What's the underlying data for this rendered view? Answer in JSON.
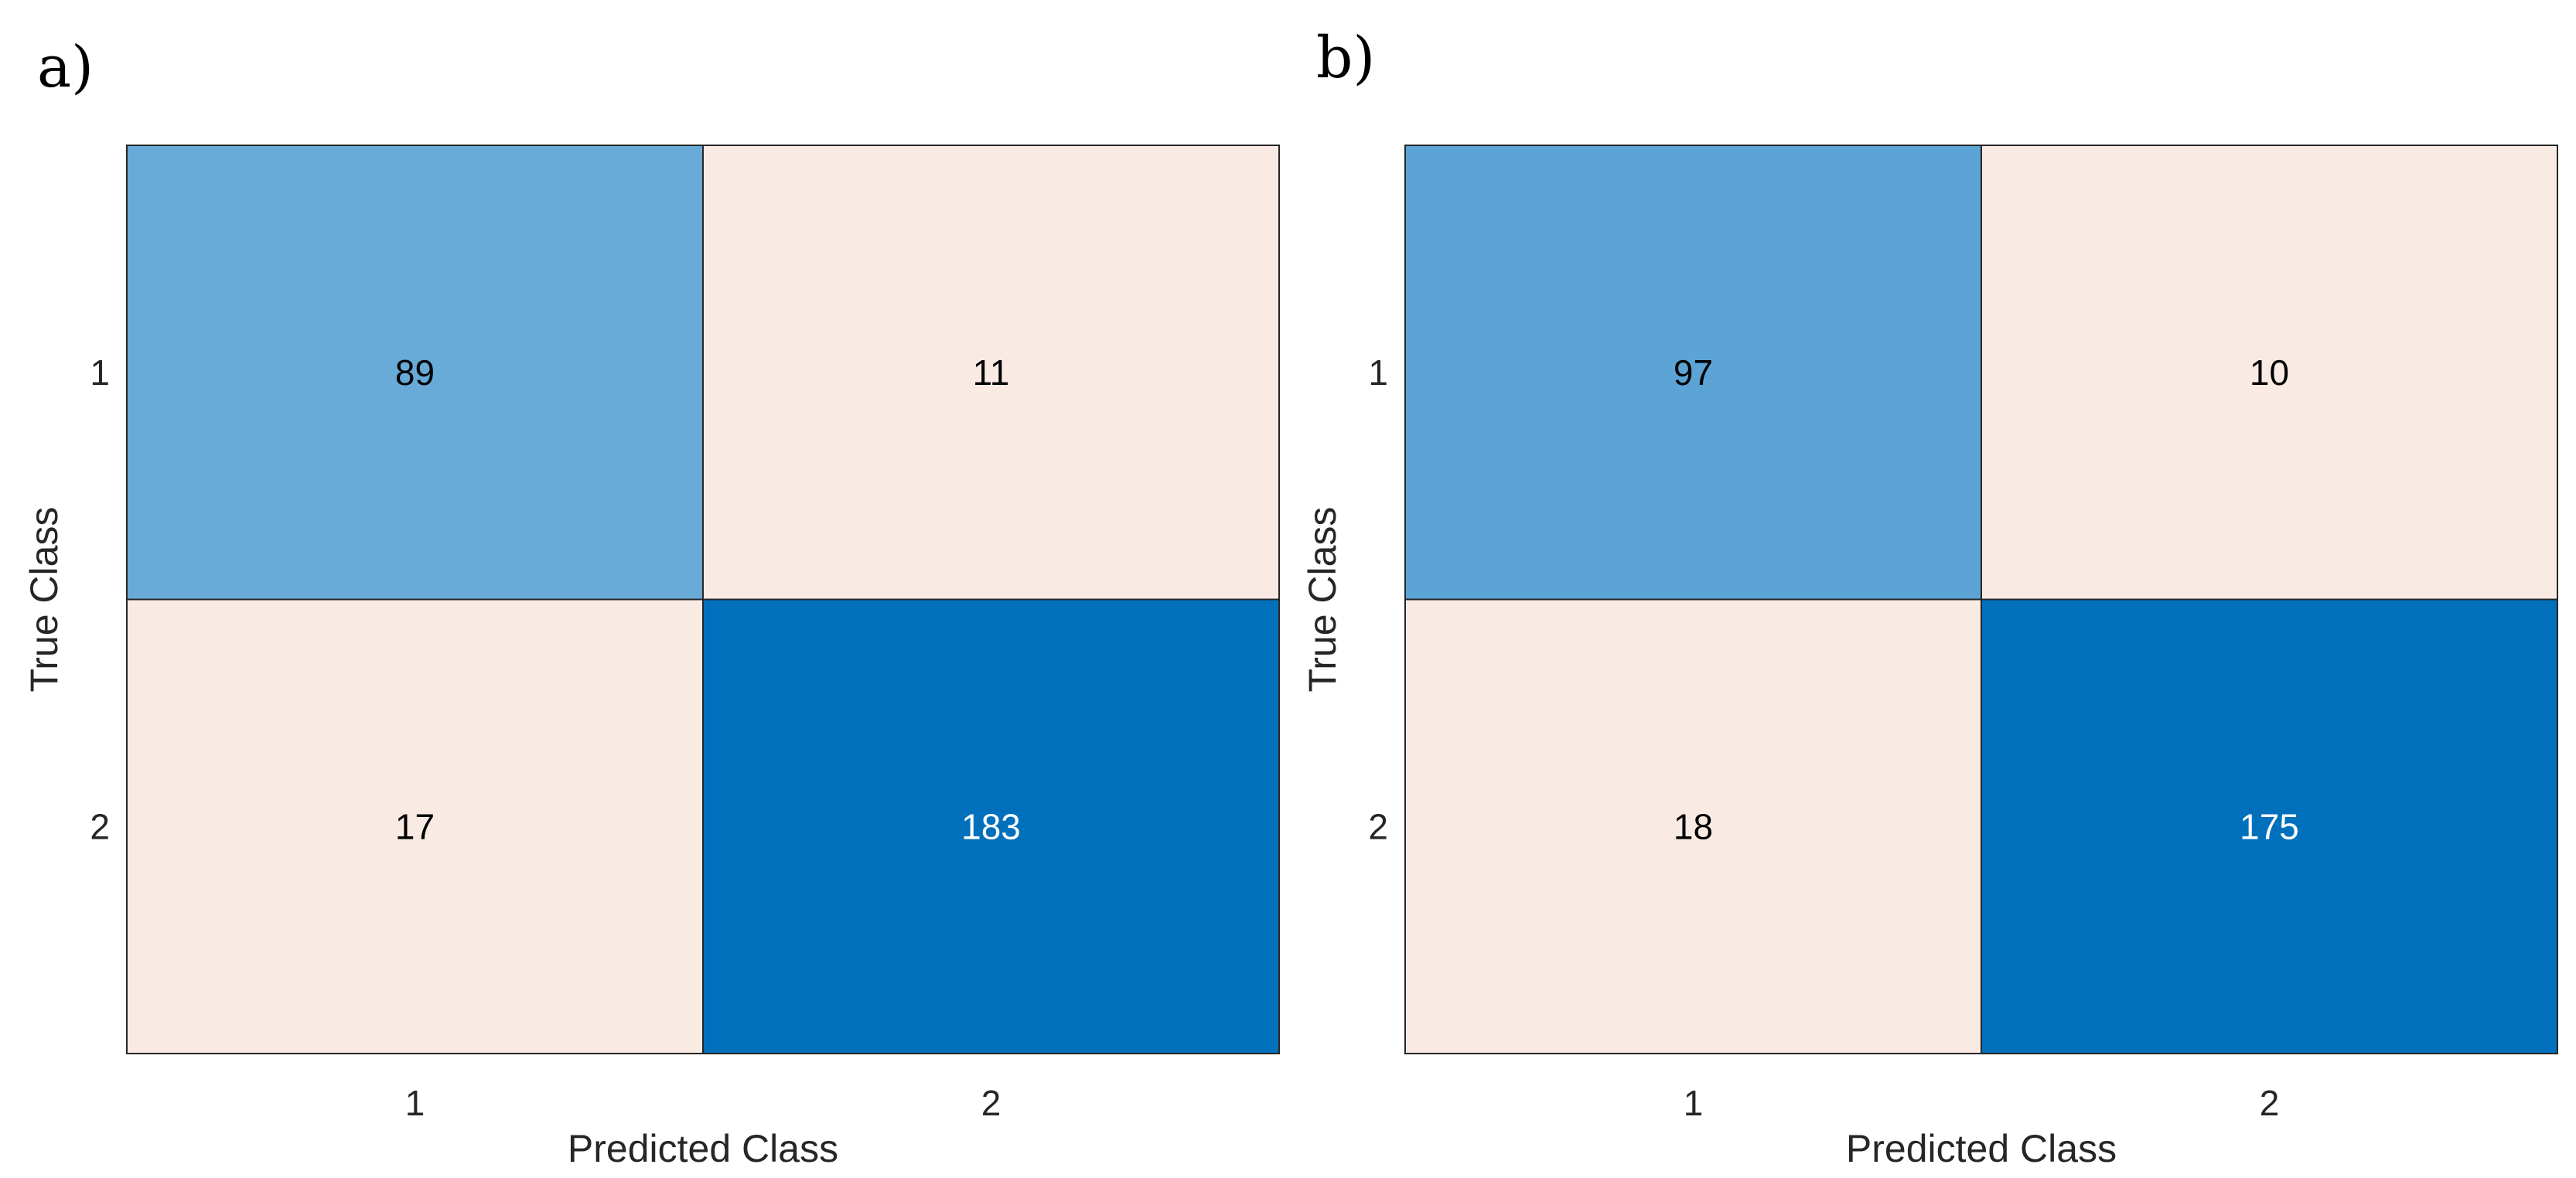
{
  "chart_data": [
    {
      "type": "heatmap",
      "panel_label": "a)",
      "row_categories": [
        "1",
        "2"
      ],
      "col_categories": [
        "1",
        "2"
      ],
      "values": [
        [
          89,
          11
        ],
        [
          17,
          183
        ]
      ],
      "xlabel": "Predicted Class",
      "ylabel": "True Class",
      "colors": {
        "low": "#f9ebe4",
        "high": "#0070bd"
      }
    },
    {
      "type": "heatmap",
      "panel_label": "b)",
      "row_categories": [
        "1",
        "2"
      ],
      "col_categories": [
        "1",
        "2"
      ],
      "values": [
        [
          97,
          10
        ],
        [
          18,
          175
        ]
      ],
      "xlabel": "Predicted Class",
      "ylabel": "True Class",
      "colors": {
        "low": "#f9ebe4",
        "high": "#0070bd"
      }
    }
  ]
}
